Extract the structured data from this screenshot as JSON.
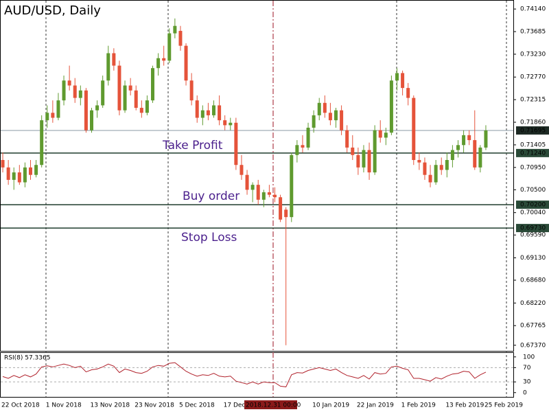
{
  "chart_data": [
    {
      "type": "candlestick",
      "title": "AUD/USD, Daily",
      "categories": [
        "22 Oct 2018",
        null,
        null,
        null,
        null,
        null,
        null,
        null,
        "1 Nov 2018",
        null,
        null,
        null,
        null,
        null,
        null,
        null,
        "13 Nov 2018",
        null,
        null,
        null,
        null,
        null,
        null,
        null,
        "23 Nov 2018",
        null,
        null,
        null,
        null,
        null,
        null,
        null,
        "5 Dec 2018",
        null,
        null,
        null,
        null,
        null,
        null,
        null,
        "17 Dec 2018",
        null,
        null,
        null,
        null,
        null,
        null,
        null,
        null,
        "2018.12.31 00:00",
        null,
        null,
        null,
        null,
        null,
        null,
        "10 Jan 2019",
        null,
        null,
        null,
        null,
        null,
        null,
        null,
        "22 Jan 2019",
        null,
        null,
        null,
        null,
        null,
        null,
        null,
        "1 Feb 2019",
        null,
        null,
        null,
        null,
        null,
        null,
        null,
        "13 Feb 2019",
        null,
        null,
        null,
        null,
        null,
        null,
        "25 Feb 2019"
      ],
      "open": [
        0.711,
        0.7095,
        0.707,
        0.7085,
        0.7065,
        0.7095,
        0.708,
        0.71,
        0.719,
        0.7205,
        0.7195,
        0.723,
        0.727,
        0.726,
        0.7235,
        0.725,
        0.717,
        0.721,
        0.722,
        0.727,
        0.7325,
        0.73,
        0.721,
        0.726,
        0.725,
        0.7215,
        0.7205,
        0.723,
        0.7295,
        0.7315,
        0.731,
        0.7365,
        0.737,
        0.734,
        0.727,
        0.723,
        0.7195,
        0.721,
        0.72,
        0.722,
        0.719,
        0.718,
        0.7185,
        0.71,
        0.708,
        0.705,
        0.706,
        0.703,
        0.7045,
        0.704,
        0.7035,
        0.701,
        0.6995,
        0.712,
        0.714,
        0.7135,
        0.7175,
        0.72,
        0.7225,
        0.7205,
        0.719,
        0.721,
        0.717,
        0.7135,
        0.712,
        0.7095,
        0.713,
        0.7085,
        0.717,
        0.7155,
        0.7165,
        0.727,
        0.7285,
        0.7255,
        0.7235,
        0.711,
        0.7105,
        0.708,
        0.7065,
        0.71,
        0.709,
        0.711,
        0.713,
        0.714,
        0.716,
        0.715,
        0.7095,
        0.7135
      ],
      "high": [
        0.7125,
        0.711,
        0.7095,
        0.71,
        0.7105,
        0.711,
        0.711,
        0.72,
        0.722,
        0.723,
        0.7245,
        0.728,
        0.73,
        0.7275,
        0.726,
        0.7255,
        0.7215,
        0.723,
        0.728,
        0.734,
        0.7335,
        0.731,
        0.727,
        0.7275,
        0.726,
        0.723,
        0.724,
        0.73,
        0.7325,
        0.734,
        0.7375,
        0.7395,
        0.738,
        0.7345,
        0.7285,
        0.724,
        0.722,
        0.7225,
        0.723,
        0.724,
        0.72,
        0.7195,
        0.7195,
        0.712,
        0.709,
        0.7065,
        0.707,
        0.705,
        0.706,
        0.7055,
        0.704,
        0.7015,
        0.7125,
        0.715,
        0.716,
        0.7185,
        0.721,
        0.7235,
        0.724,
        0.7225,
        0.7215,
        0.722,
        0.718,
        0.716,
        0.7135,
        0.714,
        0.7145,
        0.718,
        0.719,
        0.7175,
        0.728,
        0.7295,
        0.729,
        0.7265,
        0.724,
        0.7125,
        0.7115,
        0.71,
        0.711,
        0.7115,
        0.7125,
        0.714,
        0.715,
        0.717,
        0.717,
        0.721,
        0.714,
        0.718
      ],
      "low": [
        0.7085,
        0.706,
        0.705,
        0.706,
        0.7055,
        0.707,
        0.7075,
        0.7095,
        0.7175,
        0.7185,
        0.719,
        0.722,
        0.725,
        0.7225,
        0.722,
        0.7165,
        0.7165,
        0.7195,
        0.7215,
        0.726,
        0.729,
        0.72,
        0.7205,
        0.724,
        0.721,
        0.7195,
        0.72,
        0.7225,
        0.728,
        0.73,
        0.7305,
        0.7355,
        0.733,
        0.726,
        0.722,
        0.7185,
        0.718,
        0.719,
        0.7195,
        0.718,
        0.717,
        0.717,
        0.709,
        0.707,
        0.704,
        0.7025,
        0.702,
        0.7015,
        0.7035,
        0.7025,
        0.6985,
        0.6737,
        0.6985,
        0.7105,
        0.7125,
        0.713,
        0.7165,
        0.719,
        0.7195,
        0.718,
        0.7175,
        0.716,
        0.7125,
        0.711,
        0.708,
        0.7085,
        0.707,
        0.708,
        0.7145,
        0.714,
        0.716,
        0.725,
        0.724,
        0.722,
        0.71,
        0.709,
        0.707,
        0.7055,
        0.706,
        0.708,
        0.7075,
        0.7095,
        0.7115,
        0.7125,
        0.714,
        0.709,
        0.7085,
        0.713
      ],
      "close": [
        0.7095,
        0.707,
        0.7085,
        0.7065,
        0.7095,
        0.708,
        0.71,
        0.719,
        0.7205,
        0.7195,
        0.723,
        0.727,
        0.726,
        0.7235,
        0.725,
        0.717,
        0.721,
        0.722,
        0.727,
        0.7325,
        0.73,
        0.721,
        0.726,
        0.725,
        0.7215,
        0.7205,
        0.723,
        0.7295,
        0.7315,
        0.731,
        0.7365,
        0.738,
        0.734,
        0.727,
        0.723,
        0.7195,
        0.721,
        0.72,
        0.722,
        0.719,
        0.718,
        0.7185,
        0.71,
        0.708,
        0.705,
        0.706,
        0.703,
        0.7045,
        0.704,
        0.7035,
        0.699,
        0.6995,
        0.712,
        0.714,
        0.7135,
        0.7175,
        0.72,
        0.7225,
        0.7205,
        0.719,
        0.721,
        0.717,
        0.7135,
        0.712,
        0.7095,
        0.713,
        0.7085,
        0.717,
        0.7155,
        0.7165,
        0.727,
        0.7285,
        0.7255,
        0.7235,
        0.711,
        0.7105,
        0.708,
        0.7065,
        0.71,
        0.709,
        0.711,
        0.713,
        0.714,
        0.716,
        0.715,
        0.7095,
        0.7135,
        0.71695
      ],
      "up_color": "#5f9a2f",
      "down_color": "#e5533a",
      "ylim": [
        0.6727,
        0.7428
      ],
      "yticks": [
        {
          "value": 0.7414,
          "label": "0.74140"
        },
        {
          "value": 0.73685,
          "label": "0.73685"
        },
        {
          "value": 0.7323,
          "label": "0.73230"
        },
        {
          "value": 0.7277,
          "label": "0.72770"
        },
        {
          "value": 0.72315,
          "label": "0.72315"
        },
        {
          "value": 0.7186,
          "label": "0.71860"
        },
        {
          "value": 0.71405,
          "label": "0.71405"
        },
        {
          "value": 0.7095,
          "label": "0.70950"
        },
        {
          "value": 0.705,
          "label": "0.70500"
        },
        {
          "value": 0.7004,
          "label": "0.70040"
        },
        {
          "value": 0.6959,
          "label": "0.69590"
        },
        {
          "value": 0.6913,
          "label": "0.69130"
        },
        {
          "value": 0.6868,
          "label": "0.68680"
        },
        {
          "value": 0.6822,
          "label": "0.68220"
        },
        {
          "value": 0.67765,
          "label": "0.67765"
        },
        {
          "value": 0.6737,
          "label": "0.67370"
        }
      ],
      "current_price": {
        "value": 0.71695,
        "label": "0.71695"
      },
      "levels": [
        {
          "name": "Take Profit",
          "value": 0.7124,
          "label": "0.71240"
        },
        {
          "name": "Buy order",
          "value": 0.702,
          "label": "0.70200"
        },
        {
          "name": "Stop Loss",
          "value": 0.6973,
          "label": "0.69730"
        }
      ]
    },
    {
      "type": "line",
      "title": "RSI(8) 57.3365",
      "color": "#b0202a",
      "values": [
        45,
        40,
        48,
        42,
        50,
        44,
        52,
        72,
        75,
        72,
        76,
        80,
        76,
        70,
        74,
        58,
        64,
        66,
        72,
        80,
        74,
        56,
        66,
        62,
        56,
        54,
        60,
        72,
        76,
        74,
        82,
        84,
        72,
        60,
        52,
        46,
        50,
        48,
        54,
        46,
        44,
        46,
        32,
        28,
        24,
        30,
        24,
        30,
        28,
        28,
        18,
        16,
        50,
        56,
        55,
        62,
        66,
        70,
        66,
        62,
        66,
        56,
        48,
        44,
        40,
        48,
        38,
        56,
        52,
        54,
        72,
        74,
        68,
        64,
        40,
        40,
        36,
        32,
        42,
        38,
        46,
        52,
        54,
        60,
        58,
        40,
        50,
        57.3365
      ],
      "ylim": [
        -12,
        113
      ],
      "yticks": [
        0,
        30,
        70,
        100
      ],
      "levels": [
        70,
        30
      ]
    }
  ]
}
